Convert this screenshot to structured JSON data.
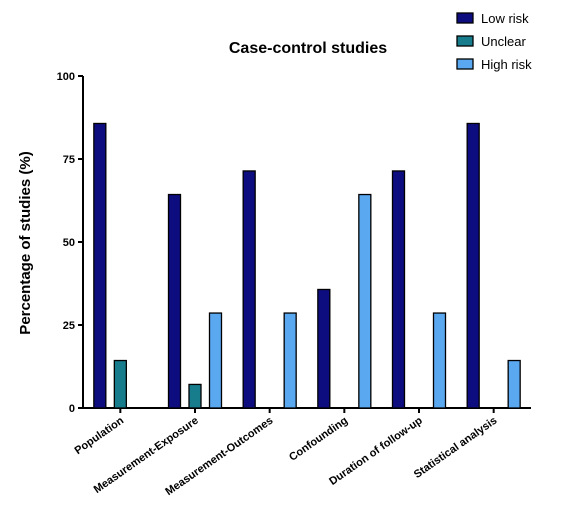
{
  "chart_data": {
    "type": "bar",
    "title": "Case-control studies",
    "xlabel": "",
    "ylabel": "Percentage of studies (%)",
    "ylim": [
      0,
      100
    ],
    "yticks": [
      0,
      25,
      50,
      75,
      100
    ],
    "categories": [
      "Population",
      "Measurement-Exposure",
      "Measurement-Outcomes",
      "Confounding",
      "Duration of follow-up",
      "Statistical analysis"
    ],
    "series": [
      {
        "name": "Low risk",
        "color": "#0d0d80",
        "values": [
          85.7,
          64.3,
          71.4,
          35.7,
          71.4,
          85.7
        ]
      },
      {
        "name": "Unclear",
        "color": "#177d8c",
        "values": [
          14.3,
          7.1,
          0,
          0,
          0,
          0
        ]
      },
      {
        "name": "High risk",
        "color": "#5aa8f0",
        "values": [
          0,
          28.6,
          28.6,
          64.3,
          28.6,
          14.3
        ]
      }
    ],
    "legend": "top-right",
    "grid": false
  }
}
